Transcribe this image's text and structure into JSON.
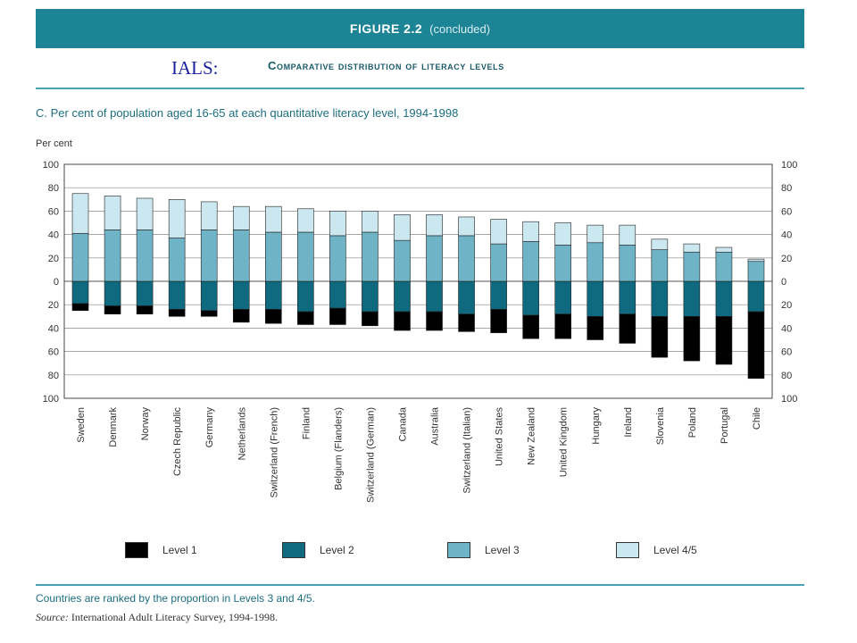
{
  "header": {
    "figure_label": "FIGURE 2.2",
    "figure_note": "(concluded)",
    "overlay_label": "IALS:",
    "subtitle": "Comparative distribution of literacy levels"
  },
  "colors": {
    "banner": "#1d8496",
    "level1": "#000000",
    "level2": "#0f6a80",
    "level3": "#6fb3c6",
    "level45": "#cbe7ef"
  },
  "chart_data": {
    "type": "bar",
    "stacked": "diverging",
    "title": "C.   Per cent of population aged 16-65 at each quantitative literacy level, 1994-1998",
    "ylabel": "Per cent",
    "ylim": [
      -100,
      100
    ],
    "yticks": [
      100,
      80,
      60,
      40,
      20,
      0,
      20,
      40,
      60,
      80,
      100
    ],
    "grid": true,
    "legend_position": "bottom",
    "categories": [
      "Sweden",
      "Denmark",
      "Norway",
      "Czech Republic",
      "Germany",
      "Netherlands",
      "Switzerland (French)",
      "Finland",
      "Belgium (Flanders)",
      "Switzerland (German)",
      "Canada",
      "Australia",
      "Switzerland (Italian)",
      "United States",
      "New Zealand",
      "United Kingdom",
      "Hungary",
      "Ireland",
      "Slovenia",
      "Poland",
      "Portugal",
      "Chile"
    ],
    "series": [
      {
        "name": "Level 1",
        "direction": "below",
        "values": [
          6,
          7,
          7,
          6,
          5,
          11,
          12,
          11,
          14,
          12,
          16,
          16,
          15,
          20,
          20,
          21,
          20,
          25,
          35,
          38,
          41,
          57
        ]
      },
      {
        "name": "Level 2",
        "direction": "below",
        "values": [
          19,
          21,
          21,
          24,
          25,
          24,
          24,
          26,
          23,
          26,
          26,
          26,
          28,
          24,
          29,
          28,
          30,
          28,
          30,
          30,
          30,
          26
        ]
      },
      {
        "name": "Level 3",
        "direction": "above",
        "values": [
          41,
          44,
          44,
          37,
          44,
          44,
          42,
          42,
          39,
          42,
          35,
          39,
          39,
          32,
          34,
          31,
          33,
          31,
          27,
          25,
          25,
          17
        ]
      },
      {
        "name": "Level 4/5",
        "direction": "above",
        "values": [
          34,
          29,
          27,
          33,
          24,
          20,
          22,
          20,
          21,
          18,
          22,
          18,
          16,
          21,
          17,
          19,
          15,
          17,
          9,
          7,
          4,
          2
        ]
      }
    ]
  },
  "footer": {
    "note": "Countries are ranked by the proportion in Levels 3 and 4/5.",
    "source_label": "Source:",
    "source_text": "International Adult Literacy Survey, 1994-1998."
  }
}
